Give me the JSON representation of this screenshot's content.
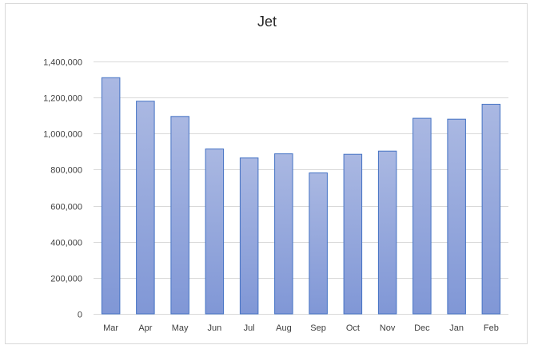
{
  "chart_data": {
    "type": "bar",
    "title": "Jet",
    "xlabel": "",
    "ylabel": "",
    "categories": [
      "Mar",
      "Apr",
      "May",
      "Jun",
      "Jul",
      "Aug",
      "Sep",
      "Oct",
      "Nov",
      "Dec",
      "Jan",
      "Feb"
    ],
    "values": [
      1310000,
      1180000,
      1095000,
      915000,
      865000,
      888000,
      782000,
      885000,
      903000,
      1085000,
      1080000,
      1163000
    ],
    "ylim": [
      0,
      1400000
    ],
    "yticks": [
      0,
      200000,
      400000,
      600000,
      800000,
      1000000,
      1200000,
      1400000
    ],
    "ytick_labels": [
      "0",
      "200,000",
      "400,000",
      "600,000",
      "800,000",
      "1,000,000",
      "1,200,000",
      "1,400,000"
    ],
    "grid": true,
    "legend": "none",
    "colors": {
      "bar_top": "#aab8e2",
      "bar_bottom": "#8097d6",
      "bar_edge": "#4472c4",
      "grid": "#d9d9d9"
    }
  }
}
